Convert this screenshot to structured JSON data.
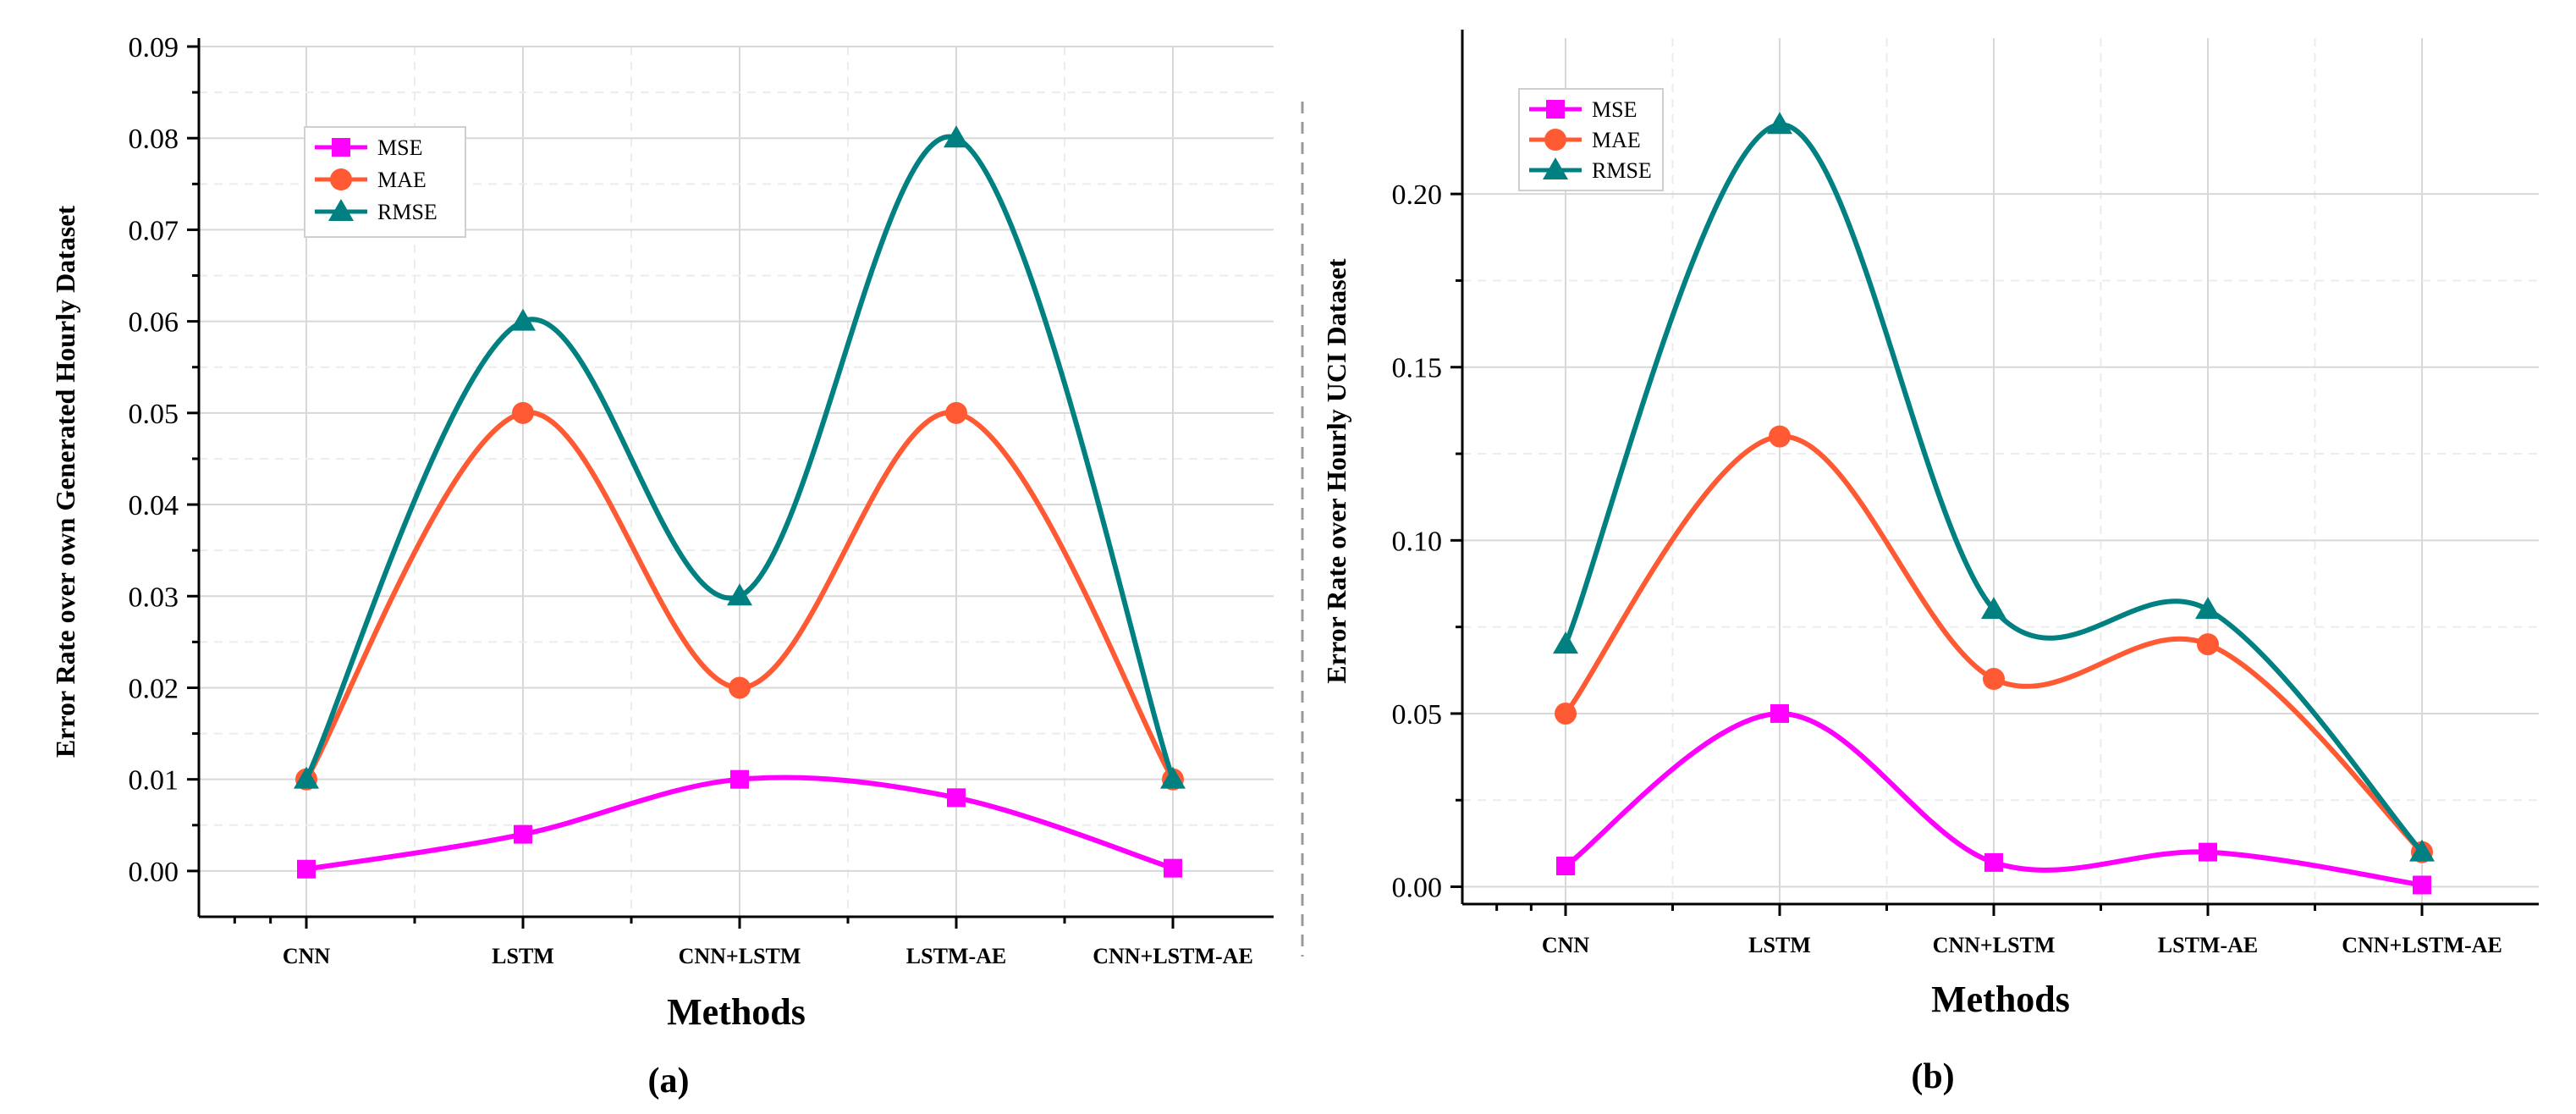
{
  "chart_data": [
    {
      "type": "line",
      "panel_label": "(a)",
      "title": "",
      "xlabel": "Methods",
      "ylabel": "Error Rate over own Generated Hourly Dataset",
      "categories": [
        "CNN",
        "LSTM",
        "CNN+LSTM",
        "LSTM-AE",
        "CNN+LSTM-AE"
      ],
      "ylim": [
        -0.005,
        0.09
      ],
      "yticks": [
        0.0,
        0.01,
        0.02,
        0.03,
        0.04,
        0.05,
        0.06,
        0.07,
        0.08,
        0.09
      ],
      "ytick_labels": [
        "0.00",
        "0.01",
        "0.02",
        "0.03",
        "0.04",
        "0.05",
        "0.06",
        "0.07",
        "0.08",
        "0.09"
      ],
      "grid": true,
      "legend_position": "top-left",
      "series": [
        {
          "name": "MSE",
          "color": "#ff00ff",
          "marker": "square",
          "values": [
            0.0002,
            0.004,
            0.01,
            0.008,
            0.0003
          ]
        },
        {
          "name": "MAE",
          "color": "#ff5a33",
          "marker": "circle",
          "values": [
            0.01,
            0.05,
            0.02,
            0.05,
            0.01
          ]
        },
        {
          "name": "RMSE",
          "color": "#008080",
          "marker": "triangle",
          "values": [
            0.01,
            0.06,
            0.03,
            0.08,
            0.01
          ]
        }
      ]
    },
    {
      "type": "line",
      "panel_label": "(b)",
      "title": "",
      "xlabel": "Methods",
      "ylabel": "Error Rate over Hourly UCI Dataset",
      "categories": [
        "CNN",
        "LSTM",
        "CNN+LSTM",
        "LSTM-AE",
        "CNN+LSTM-AE"
      ],
      "ylim": [
        -0.005,
        0.245
      ],
      "yticks": [
        0.0,
        0.05,
        0.1,
        0.15,
        0.2
      ],
      "ytick_labels": [
        "0.00",
        "0.05",
        "0.10",
        "0.15",
        "0.20"
      ],
      "grid": true,
      "legend_position": "top-left",
      "series": [
        {
          "name": "MSE",
          "color": "#ff00ff",
          "marker": "square",
          "values": [
            0.006,
            0.05,
            0.007,
            0.01,
            0.0005
          ]
        },
        {
          "name": "MAE",
          "color": "#ff5a33",
          "marker": "circle",
          "values": [
            0.05,
            0.13,
            0.06,
            0.07,
            0.01
          ]
        },
        {
          "name": "RMSE",
          "color": "#008080",
          "marker": "triangle",
          "values": [
            0.07,
            0.22,
            0.08,
            0.08,
            0.01
          ]
        }
      ]
    }
  ]
}
